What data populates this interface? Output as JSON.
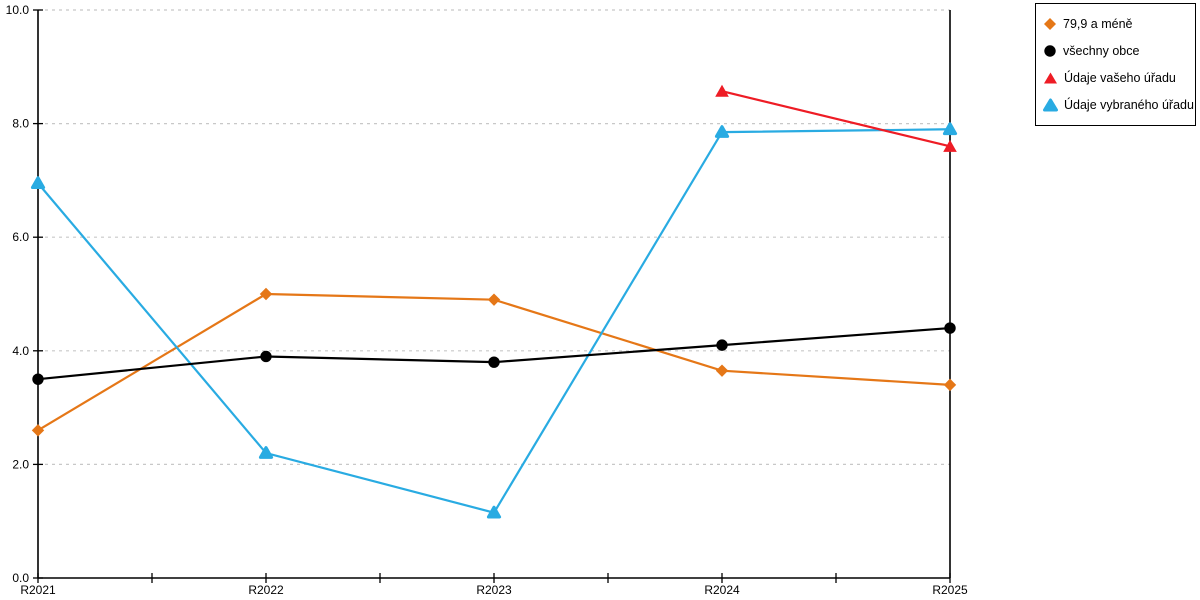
{
  "page": {
    "background_color": "#ffffff"
  },
  "chart_data": {
    "type": "line",
    "title": "",
    "xlabel": "",
    "ylabel": "",
    "categories": [
      "R2021",
      "R2022",
      "R2023",
      "R2024",
      "R2025"
    ],
    "series": [
      {
        "name": "79,9 a méně",
        "color": "#E57717",
        "marker": "diamond",
        "values": [
          2.6,
          5.0,
          4.9,
          3.65,
          3.4
        ]
      },
      {
        "name": "všechny obce",
        "color": "#000000",
        "marker": "circle",
        "values": [
          3.5,
          3.9,
          3.8,
          4.1,
          4.4
        ]
      },
      {
        "name": "Údaje vašeho úřadu",
        "color": "#EE1C25",
        "marker": "triangle",
        "values": [
          null,
          null,
          null,
          8.57,
          7.6
        ]
      },
      {
        "name": "Údaje vybraného úřadu",
        "color": "#29ABE2",
        "marker": "triangle-rounded",
        "values": [
          6.95,
          2.2,
          1.15,
          7.85,
          7.9
        ]
      }
    ],
    "ylim": [
      0,
      10
    ],
    "ytick_step": 2,
    "ytick_labels": [
      "0.0",
      "2.0",
      "4.0",
      "6.0",
      "8.0",
      "10.0"
    ],
    "grid": "dashed-horizontal",
    "grid_color": "#C8C8C8",
    "axis_color": "#000000",
    "x_minor_ticks": true,
    "legend_position": "top-right"
  }
}
